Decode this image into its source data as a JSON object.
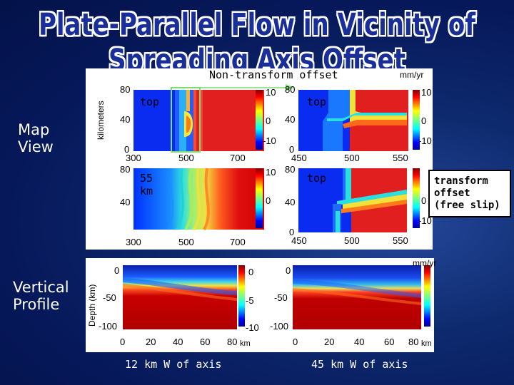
{
  "slide": {
    "title": "Plate-Parallel Flow in Vicinity of Spreading Axis Offset",
    "map_view_label_1": "Map",
    "map_view_label_2": "View",
    "vertical_profile_label_1": "Vertical",
    "vertical_profile_label_2": "Profile",
    "caption_left": "12 km W of axis",
    "caption_right": "45 km W of axis"
  },
  "map_panel": {
    "heading": "Non-transform offset",
    "ylabel": "kilometers",
    "unit": "mm/yr",
    "label_top_left": "top",
    "label_top_right": "top",
    "label_bottom_left_1": "55",
    "label_bottom_left_2": "km",
    "label_bottom_right": "top",
    "transform_note_1": "transform",
    "transform_note_2": "offset",
    "transform_note_3": "(free slip)",
    "left_y_ticks": [
      "80",
      "40",
      "0"
    ],
    "left_x_ticks": [
      "300",
      "500",
      "700"
    ],
    "right_y_ticks": [
      "80",
      "40",
      "0"
    ],
    "right_x_ticks": [
      "450",
      "500",
      "550"
    ],
    "colorbar_ticks": [
      "10",
      "0",
      "-10"
    ]
  },
  "profile_panel": {
    "ylabel": "Depth (km)",
    "unit": "mm/yr",
    "y_ticks": [
      "0",
      "-50",
      "-100"
    ],
    "x_ticks": [
      "0",
      "20",
      "40",
      "60",
      "80"
    ],
    "colorbar_ticks": [
      "0",
      "-5",
      "-10"
    ],
    "colorbar_unit": "km"
  },
  "colors": {
    "background": "#06185a",
    "title_fill": "#1a2e9a",
    "highlight_box": "#7ddc6e"
  }
}
